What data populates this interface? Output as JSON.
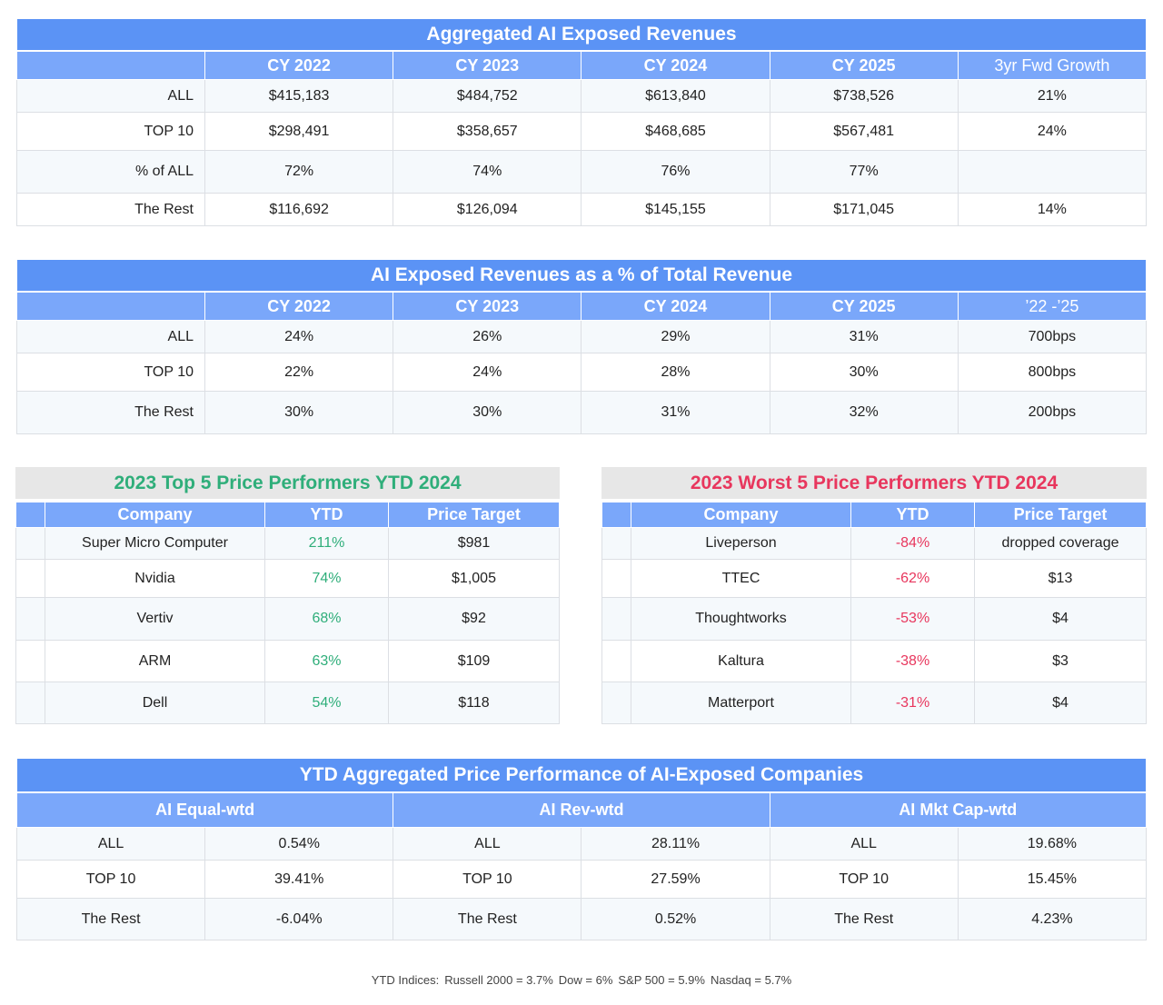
{
  "agg": {
    "title": "Aggregated AI Exposed Revenues",
    "columns": [
      "",
      "CY 2022",
      "CY 2023",
      "CY 2024",
      "CY 2025",
      "3yr Fwd Growth"
    ],
    "rows": [
      {
        "label": "ALL",
        "values": [
          "$415,183",
          "$484,752",
          "$613,840",
          "$738,526",
          "21%"
        ]
      },
      {
        "label": "TOP 10",
        "values": [
          "$298,491",
          "$358,657",
          "$468,685",
          "$567,481",
          "24%"
        ]
      },
      {
        "label": "% of ALL",
        "values": [
          "72%",
          "74%",
          "76%",
          "77%",
          ""
        ]
      },
      {
        "label": "The Rest",
        "values": [
          "$116,692",
          "$126,094",
          "$145,155",
          "$171,045",
          "14%"
        ]
      }
    ]
  },
  "pct": {
    "title": "AI Exposed Revenues as a % of Total Revenue",
    "columns": [
      "",
      "CY 2022",
      "CY 2023",
      "CY 2024",
      "CY 2025",
      "’22 -’25"
    ],
    "rows": [
      {
        "label": "ALL",
        "values": [
          "24%",
          "26%",
          "29%",
          "31%",
          "700bps"
        ]
      },
      {
        "label": "TOP 10",
        "values": [
          "22%",
          "24%",
          "28%",
          "30%",
          "800bps"
        ]
      },
      {
        "label": "The Rest",
        "values": [
          "30%",
          "30%",
          "31%",
          "32%",
          "200bps"
        ]
      }
    ]
  },
  "top5": {
    "title": "2023 Top 5 Price Performers YTD 2024",
    "title_color": "#2fae7a",
    "columns": [
      "",
      "Company",
      "YTD",
      "Price Target"
    ],
    "rows": [
      {
        "company": "Super Micro Computer",
        "ytd": "211%",
        "target": "$981"
      },
      {
        "company": "Nvidia",
        "ytd": "74%",
        "target": "$1,005"
      },
      {
        "company": "Vertiv",
        "ytd": "68%",
        "target": "$92"
      },
      {
        "company": "ARM",
        "ytd": "63%",
        "target": "$109"
      },
      {
        "company": "Dell",
        "ytd": "54%",
        "target": "$118"
      }
    ]
  },
  "worst5": {
    "title": "2023 Worst 5 Price Performers YTD 2024",
    "title_color": "#e8365d",
    "columns": [
      "",
      "Company",
      "YTD",
      "Price Target"
    ],
    "rows": [
      {
        "company": "Liveperson",
        "ytd": "-84%",
        "target": "dropped coverage"
      },
      {
        "company": "TTEC",
        "ytd": "-62%",
        "target": "$13"
      },
      {
        "company": "Thoughtworks",
        "ytd": "-53%",
        "target": "$4"
      },
      {
        "company": "Kaltura",
        "ytd": "-38%",
        "target": "$3"
      },
      {
        "company": "Matterport",
        "ytd": "-31%",
        "target": "$4"
      }
    ]
  },
  "ytd": {
    "title": "YTD Aggregated Price Performance of AI-Exposed Companies",
    "groups": [
      "AI Equal-wtd",
      "AI Rev-wtd",
      "AI Mkt Cap-wtd"
    ],
    "rows": [
      {
        "cells": [
          "ALL",
          "0.54%",
          "ALL",
          "28.11%",
          "ALL",
          "19.68%"
        ]
      },
      {
        "cells": [
          "TOP 10",
          "39.41%",
          "TOP 10",
          "27.59%",
          "TOP 10",
          "15.45%"
        ]
      },
      {
        "cells": [
          "The Rest",
          "-6.04%",
          "The Rest",
          "0.52%",
          "The Rest",
          "4.23%"
        ]
      }
    ]
  },
  "footer": {
    "prefix": "YTD Indices:",
    "items": [
      "Russell 2000 = 3.7%",
      "Dow = 6%",
      "S&P 500 = 5.9%",
      "Nasdaq = 5.7%"
    ]
  }
}
